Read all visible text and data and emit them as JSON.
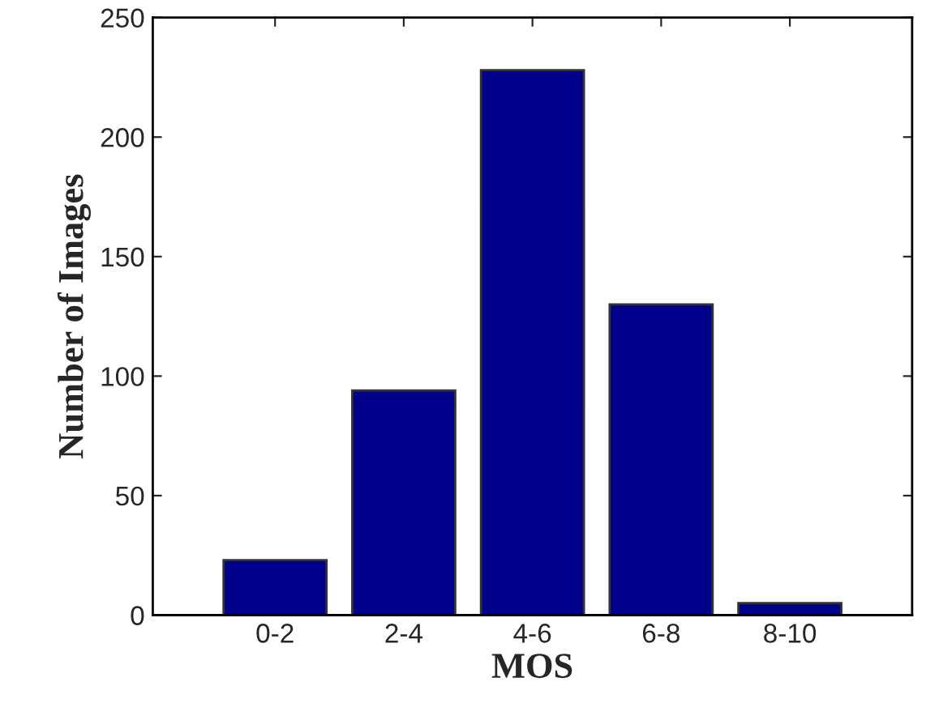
{
  "chart_data": {
    "type": "bar",
    "xlabel": "MOS",
    "ylabel": "Number of Images",
    "categories": [
      "0-2",
      "2-4",
      "4-6",
      "6-8",
      "8-10"
    ],
    "values": [
      23,
      94,
      228,
      130,
      5
    ],
    "color": "#00008b",
    "ylim": [
      0,
      250
    ],
    "yticks": [
      0,
      50,
      100,
      150,
      200,
      250
    ],
    "grid": false,
    "legend": false
  }
}
